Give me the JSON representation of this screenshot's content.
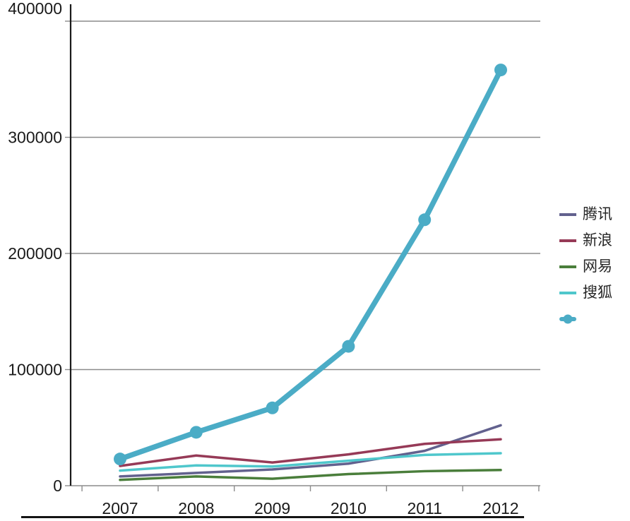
{
  "chart_data": {
    "type": "line",
    "title": "",
    "xlabel": "",
    "ylabel": "",
    "categories": [
      "2007",
      "2008",
      "2009",
      "2010",
      "2011",
      "2012"
    ],
    "series": [
      {
        "name": "腾讯",
        "color": "#62618e",
        "width": 3.5,
        "marker": false,
        "values": [
          8000,
          11000,
          14000,
          19000,
          30000,
          52000
        ]
      },
      {
        "name": "新浪",
        "color": "#963a57",
        "width": 3.5,
        "marker": false,
        "values": [
          17000,
          26000,
          20000,
          27000,
          36000,
          40000
        ]
      },
      {
        "name": "网易",
        "color": "#4a7e3b",
        "width": 3.5,
        "marker": false,
        "values": [
          5000,
          8000,
          6000,
          10000,
          12500,
          13500
        ]
      },
      {
        "name": "搜狐",
        "color": "#4fc7cc",
        "width": 3.5,
        "marker": false,
        "values": [
          13000,
          17500,
          16500,
          21500,
          26500,
          28000
        ]
      },
      {
        "name": "",
        "color": "#4bacc6",
        "width": 7.5,
        "marker": true,
        "values": [
          23000,
          46000,
          67000,
          120000,
          229000,
          358000
        ]
      }
    ],
    "ylim": [
      0,
      400000
    ],
    "ytick_step": 100000,
    "ytick_labels": [
      "0",
      "100000",
      "200000",
      "300000",
      "400000"
    ],
    "grid": true,
    "grid_color": "#8c8c8c",
    "axis_color": "#1a1a1a",
    "legend_position": "right"
  }
}
